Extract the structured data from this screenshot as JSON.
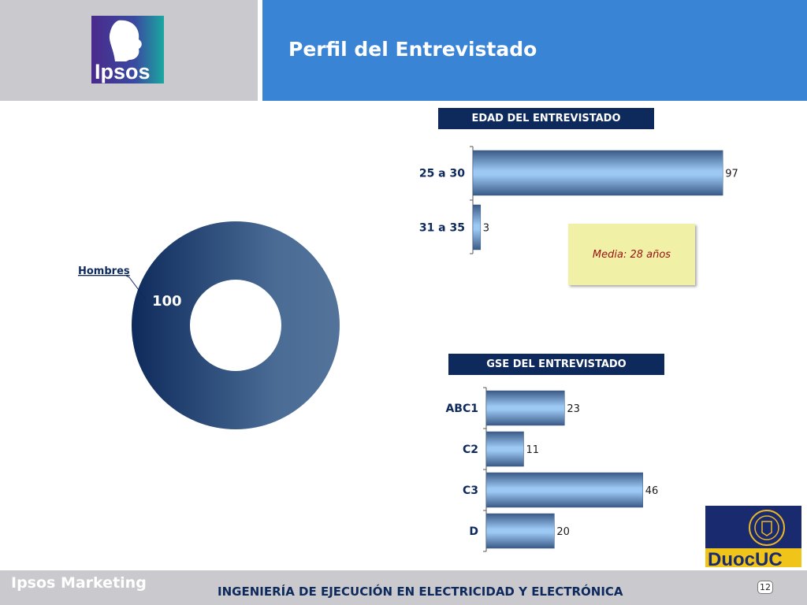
{
  "header": {
    "title": "Perfil del Entrevistado",
    "logo_text": "Ipsos",
    "colors": {
      "bar": "#3a84d6",
      "side": "#c9c9ce",
      "navy": "#0e2a5c"
    }
  },
  "footer": {
    "brand": "Ipsos Marketing",
    "text": "INGENIERÍA DE EJECUCIÓN EN ELECTRICIDAD Y ELECTRÓNICA",
    "page": "12",
    "partner_logo_text": "DuocUC"
  },
  "note": {
    "text": "Media: 28 años"
  },
  "chart_data": [
    {
      "type": "pie",
      "title": "",
      "labels": [
        "Hombres"
      ],
      "values": [
        100
      ],
      "donut": true,
      "color": "#2f5a8c"
    },
    {
      "type": "bar",
      "orientation": "horizontal",
      "title": "EDAD DEL ENTREVISTADO",
      "categories": [
        "25 a 30",
        "31 a 35"
      ],
      "values": [
        97,
        3
      ],
      "xlim": [
        0,
        100
      ]
    },
    {
      "type": "bar",
      "orientation": "horizontal",
      "title": "GSE DEL ENTREVISTADO",
      "categories": [
        "ABC1",
        "C2",
        "C3",
        "D"
      ],
      "values": [
        23,
        11,
        46,
        20
      ],
      "xlim": [
        0,
        100
      ]
    }
  ]
}
